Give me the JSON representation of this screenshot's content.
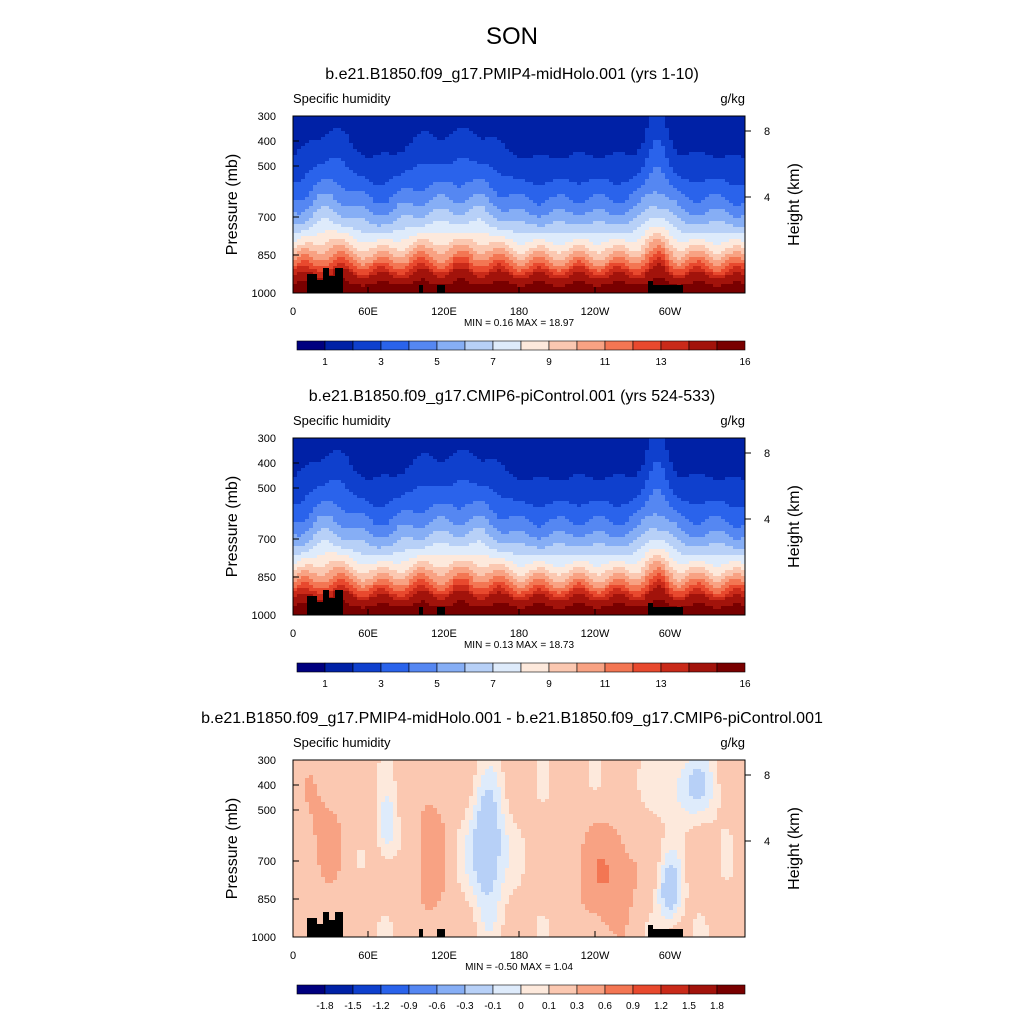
{
  "page_title": "SON",
  "chart_data": [
    {
      "type": "heatmap",
      "title": "b.e21.B1850.f09_g17.PMIP4-midHolo.001 (yrs 1-10)",
      "left_label": "Specific humidity",
      "units": "g/kg",
      "ylabel": "Pressure (mb)",
      "ylabel_right": "Height (km)",
      "x_ticks": [
        "0",
        "60E",
        "120E",
        "180",
        "120W",
        "60W"
      ],
      "y_ticks": [
        "300",
        "400",
        "500",
        "700",
        "850",
        "1000"
      ],
      "y2_ticks": [
        "8",
        "4"
      ],
      "stats": "MIN =   0.16  MAX =  18.97",
      "min": 0.16,
      "max": 18.97,
      "colorbar_labels": [
        "1",
        "3",
        "5",
        "7",
        "9",
        "11",
        "13",
        "16"
      ],
      "colors": [
        "#00007f",
        "#0021a6",
        "#0f40cd",
        "#2a63eb",
        "#5587f2",
        "#86aef5",
        "#b7d0f7",
        "#deebfb",
        "#fde9dc",
        "#fbc8b1",
        "#f8a283",
        "#f37653",
        "#e8492e",
        "#c92a19",
        "#a2130b",
        "#790000"
      ],
      "field": "abs"
    },
    {
      "type": "heatmap",
      "title": "b.e21.B1850.f09_g17.CMIP6-piControl.001 (yrs 524-533)",
      "left_label": "Specific humidity",
      "units": "g/kg",
      "ylabel": "Pressure (mb)",
      "ylabel_right": "Height (km)",
      "x_ticks": [
        "0",
        "60E",
        "120E",
        "180",
        "120W",
        "60W"
      ],
      "y_ticks": [
        "300",
        "400",
        "500",
        "700",
        "850",
        "1000"
      ],
      "y2_ticks": [
        "8",
        "4"
      ],
      "stats": "MIN =   0.13  MAX =  18.73",
      "min": 0.13,
      "max": 18.73,
      "colorbar_labels": [
        "1",
        "3",
        "5",
        "7",
        "9",
        "11",
        "13",
        "16"
      ],
      "colors": [
        "#00007f",
        "#0021a6",
        "#0f40cd",
        "#2a63eb",
        "#5587f2",
        "#86aef5",
        "#b7d0f7",
        "#deebfb",
        "#fde9dc",
        "#fbc8b1",
        "#f8a283",
        "#f37653",
        "#e8492e",
        "#c92a19",
        "#a2130b",
        "#790000"
      ],
      "field": "abs"
    },
    {
      "type": "heatmap",
      "title": "b.e21.B1850.f09_g17.PMIP4-midHolo.001 - b.e21.B1850.f09_g17.CMIP6-piControl.001",
      "left_label": "Specific humidity",
      "units": "g/kg",
      "ylabel": "Pressure (mb)",
      "ylabel_right": "Height (km)",
      "x_ticks": [
        "0",
        "60E",
        "120E",
        "180",
        "120W",
        "60W"
      ],
      "y_ticks": [
        "300",
        "400",
        "500",
        "700",
        "850",
        "1000"
      ],
      "y2_ticks": [
        "8",
        "4"
      ],
      "stats": "MIN =  -0.50  MAX =   1.04",
      "min": -0.5,
      "max": 1.04,
      "colorbar_labels": [
        "-1.8",
        "-1.5",
        "-1.2",
        "-0.9",
        "-0.6",
        "-0.3",
        "-0.1",
        "0",
        "0.1",
        "0.3",
        "0.6",
        "0.9",
        "1.2",
        "1.5",
        "1.8"
      ],
      "colors": [
        "#00007f",
        "#0021a6",
        "#0f40cd",
        "#2a63eb",
        "#5587f2",
        "#86aef5",
        "#b7d0f7",
        "#deebfb",
        "#fde9dc",
        "#fbc8b1",
        "#f8a283",
        "#f37653",
        "#e8492e",
        "#c92a19",
        "#a2130b",
        "#790000"
      ],
      "field": "diff"
    }
  ]
}
